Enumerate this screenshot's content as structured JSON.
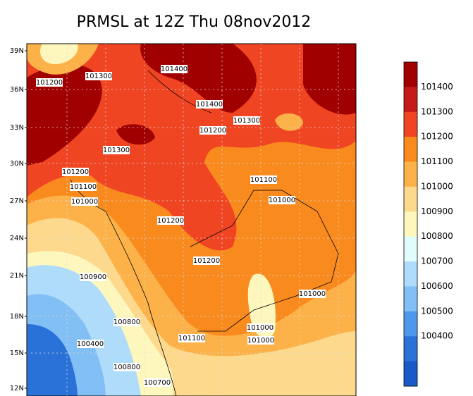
{
  "title": "PRMSL at 12Z Thu 08nov2012",
  "lat_labels": [
    "39N",
    "36N",
    "33N",
    "30N",
    "27N",
    "24N",
    "21N",
    "18N",
    "15N",
    "12N"
  ],
  "contour_labels": [
    "101200",
    "101300",
    "101400",
    "101400",
    "101300",
    "101200",
    "101300",
    "101200",
    "101100",
    "101000",
    "101100",
    "101000",
    "101200",
    "101200",
    "100900",
    "101000",
    "100800",
    "101100",
    "101000",
    "101000",
    "100400",
    "100800",
    "100700"
  ],
  "colorbar": {
    "labels": [
      "101400",
      "101300",
      "101200",
      "101100",
      "101000",
      "100900",
      "100800",
      "100700",
      "100600",
      "100500",
      "100400"
    ],
    "colors": [
      "#a00000",
      "#c41a1a",
      "#f04522",
      "#f98a1e",
      "#fcb248",
      "#fcd98c",
      "#fdf7bd",
      "#e0fcfc",
      "#aedcfa",
      "#82bff5",
      "#4d98ec",
      "#2a72d8",
      "#1a5ac8"
    ]
  }
}
